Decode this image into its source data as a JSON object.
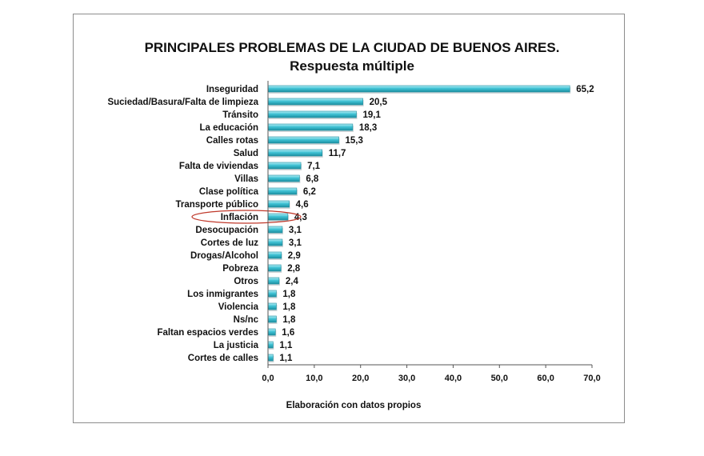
{
  "chart_data": {
    "type": "bar",
    "orientation": "horizontal",
    "title": "PRINCIPALES PROBLEMAS DE LA CIUDAD DE BUENOS AIRES.",
    "subtitle": "Respuesta múltiple",
    "note": "Elaboración con datos propios",
    "categories": [
      "Inseguridad",
      "Suciedad/Basura/Falta de limpieza",
      "Tránsito",
      "La educación",
      "Calles rotas",
      "Salud",
      "Falta de viviendas",
      "Villas",
      "Clase política",
      "Transporte público",
      "Inflación",
      "Desocupación",
      "Cortes de luz",
      "Drogas/Alcohol",
      "Pobreza",
      "Otros",
      "Los inmigrantes",
      "Violencia",
      "Ns/nc",
      "Faltan espacios verdes",
      "La justicia",
      "Cortes de calles"
    ],
    "values": [
      65.2,
      20.5,
      19.1,
      18.3,
      15.3,
      11.7,
      7.1,
      6.8,
      6.2,
      4.6,
      4.3,
      3.1,
      3.1,
      2.9,
      2.8,
      2.4,
      1.8,
      1.8,
      1.8,
      1.6,
      1.1,
      1.1
    ],
    "value_labels": [
      "65,2",
      "20,5",
      "19,1",
      "18,3",
      "15,3",
      "11,7",
      "7,1",
      "6,8",
      "6,2",
      "4,6",
      "4,3",
      "3,1",
      "3,1",
      "2,9",
      "2,8",
      "2,4",
      "1,8",
      "1,8",
      "1,8",
      "1,6",
      "1,1",
      "1,1"
    ],
    "xlim": [
      0,
      70
    ],
    "x_ticks": [
      "0,0",
      "10,0",
      "20,0",
      "30,0",
      "40,0",
      "50,0",
      "60,0",
      "70,0"
    ],
    "highlighted_category": "Inflación",
    "grid": false,
    "colors": {
      "bar_light": "#b8eef6",
      "bar_mid": "#3fc2d4",
      "bar_dark": "#1c8ea0",
      "highlight_ellipse": "#c0392b",
      "frame": "#8c8c8c"
    }
  }
}
